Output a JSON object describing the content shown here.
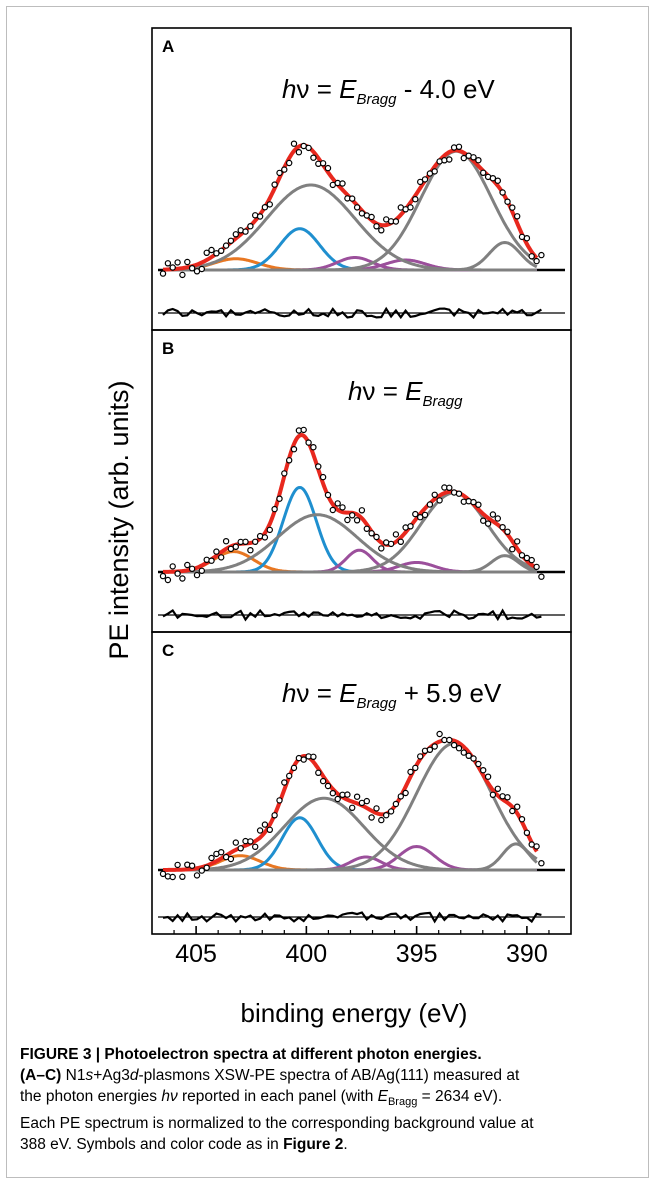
{
  "figure": {
    "ylabel": "PE intensity (arb. units)",
    "xlabel": "binding energy (eV)",
    "xticks": [
      405,
      400,
      395,
      390
    ],
    "xlim": [
      407,
      388
    ]
  },
  "chart_data": [
    {
      "type": "line",
      "panel": "A",
      "annotation": {
        "h": "h",
        "nu": "ν",
        "eq": " = ",
        "E": "E",
        "sub": "Bragg",
        "rest": " - 4.0 eV"
      },
      "xlim": [
        407,
        388
      ],
      "components": [
        {
          "color": "#e87722",
          "center": 403.2,
          "amp": 0.09,
          "sigma": 1.0
        },
        {
          "color": "#1f8fcf",
          "center": 400.3,
          "amp": 0.33,
          "sigma": 0.9
        },
        {
          "color": "#9b4f9b",
          "center": 397.8,
          "amp": 0.1,
          "sigma": 0.8
        },
        {
          "color": "#9b4f9b",
          "center": 395.5,
          "amp": 0.08,
          "sigma": 0.9
        },
        {
          "color": "#808080",
          "center": 399.8,
          "amp": 0.68,
          "sigma": 2.0
        },
        {
          "color": "#808080",
          "center": 393.2,
          "amp": 0.95,
          "sigma": 1.6
        },
        {
          "color": "#808080",
          "center": 391.0,
          "amp": 0.22,
          "sigma": 0.7
        }
      ],
      "fit_color": "#e8281e",
      "ymax": 1.2,
      "seed": 7
    },
    {
      "type": "line",
      "panel": "B",
      "annotation": {
        "h": "h",
        "nu": "ν",
        "eq": " = ",
        "E": "E",
        "sub": "Bragg",
        "rest": ""
      },
      "xlim": [
        407,
        388
      ],
      "components": [
        {
          "color": "#e87722",
          "center": 403.3,
          "amp": 0.15,
          "sigma": 0.9
        },
        {
          "color": "#1f8fcf",
          "center": 400.3,
          "amp": 0.62,
          "sigma": 0.75
        },
        {
          "color": "#9b4f9b",
          "center": 397.6,
          "amp": 0.16,
          "sigma": 0.6
        },
        {
          "color": "#9b4f9b",
          "center": 395.0,
          "amp": 0.07,
          "sigma": 0.8
        },
        {
          "color": "#808080",
          "center": 399.5,
          "amp": 0.42,
          "sigma": 1.8
        },
        {
          "color": "#808080",
          "center": 393.3,
          "amp": 0.58,
          "sigma": 1.5
        },
        {
          "color": "#808080",
          "center": 391.0,
          "amp": 0.12,
          "sigma": 0.6
        }
      ],
      "fit_color": "#e8281e",
      "ymax": 1.1,
      "seed": 19
    },
    {
      "type": "line",
      "panel": "C",
      "annotation": {
        "h": "h",
        "nu": "ν",
        "eq": " = ",
        "E": "E",
        "sub": "Bragg",
        "rest": " + 5.9 eV"
      },
      "xlim": [
        407,
        388
      ],
      "components": [
        {
          "color": "#e87722",
          "center": 403.0,
          "amp": 0.11,
          "sigma": 0.9
        },
        {
          "color": "#1f8fcf",
          "center": 400.3,
          "amp": 0.4,
          "sigma": 0.8
        },
        {
          "color": "#9b4f9b",
          "center": 397.3,
          "amp": 0.1,
          "sigma": 0.7
        },
        {
          "color": "#9b4f9b",
          "center": 395.0,
          "amp": 0.18,
          "sigma": 0.8
        },
        {
          "color": "#808080",
          "center": 399.2,
          "amp": 0.55,
          "sigma": 1.8
        },
        {
          "color": "#808080",
          "center": 393.3,
          "amp": 0.97,
          "sigma": 1.7
        },
        {
          "color": "#808080",
          "center": 390.5,
          "amp": 0.2,
          "sigma": 0.6
        }
      ],
      "fit_color": "#e8281e",
      "ymax": 1.15,
      "seed": 31
    }
  ],
  "caption": {
    "title": "FIGURE 3 | Photoelectron spectra at different photon energies.",
    "line1_a": "(A–C)",
    "line1_b": " N1",
    "line1_s": "s",
    "line1_c": "+Ag3",
    "line1_d": "d",
    "line1_e": "-plasmons XSW-PE spectra of AB/Ag(111) measured at",
    "line2_a": "the photon energies ",
    "line2_hv": "hν",
    "line2_b": " reported in each panel (with ",
    "line2_E": "E",
    "line2_sub": "Bragg",
    "line2_c": " = 2634 eV).",
    "line3": "Each PE spectrum is normalized to the corresponding background value at",
    "line4_a": "388 eV. Symbols and color code as in ",
    "line4_b": "Figure 2",
    "line4_c": "."
  }
}
